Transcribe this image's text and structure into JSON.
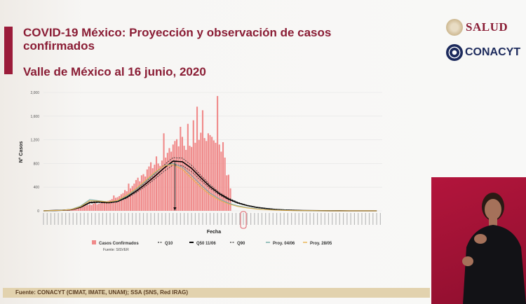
{
  "slide": {
    "title": "COVID-19 México: Proyección y observación de casos confirmados",
    "subtitle": "Valle de México al 16 junio, 2020",
    "footer": "Fuente: CONACYT (CIMAT, IMATE, UNAM);   SSA (SNS, Red IRAG)",
    "logos": {
      "salud": "SALUD",
      "conacyt": "CONACYT"
    },
    "colors": {
      "accent": "#8a1d35",
      "bars": "#f08a8a",
      "q50": "#000000",
      "proy_0406": "#6fa9a3",
      "proy_2805": "#e8b04a",
      "footer": "#e2d2ae"
    }
  },
  "chart_data": {
    "type": "bar",
    "xlabel": "Fecha",
    "ylabel": "N° Casos",
    "source": "Fuente: SISVER",
    "ylim": [
      0,
      2000
    ],
    "yticks": [
      "0",
      "400",
      "800",
      "1,200",
      "1,600",
      "2,000"
    ],
    "grid": true,
    "legend_placement": "bottom",
    "days_total": 183,
    "bars": {
      "name": "Casos Confirmados",
      "values": [
        0,
        0,
        0,
        0,
        0,
        2,
        3,
        5,
        8,
        10,
        12,
        15,
        20,
        25,
        30,
        35,
        40,
        45,
        40,
        50,
        60,
        70,
        80,
        90,
        100,
        110,
        100,
        120,
        130,
        110,
        120,
        130,
        150,
        140,
        160,
        170,
        180,
        200,
        260,
        220,
        230,
        250,
        280,
        300,
        350,
        330,
        460,
        380,
        420,
        460,
        520,
        560,
        500,
        600,
        620,
        580,
        700,
        750,
        820,
        720,
        780,
        920,
        800,
        760,
        850,
        1310,
        900,
        980,
        1060,
        1000,
        1120,
        1180,
        1210,
        1090,
        1420,
        1250,
        1100,
        1030,
        1470,
        1100,
        1080,
        1530,
        1150,
        1760,
        1200,
        1320,
        1700,
        1230,
        1180,
        1310,
        1280,
        1250,
        1190,
        1150,
        1940,
        1120,
        1000,
        1160,
        900,
        600,
        610,
        380
      ]
    },
    "curve_step_days": 5,
    "series": [
      {
        "name": "Q10",
        "style": "dashed",
        "values": [
          0,
          5,
          9,
          18,
          55,
          130,
          140,
          130,
          150,
          215,
          305,
          415,
          535,
          665,
          775,
          765,
          665,
          515,
          380,
          270,
          185,
          125,
          85,
          55,
          37,
          23,
          14,
          9,
          6,
          4,
          2,
          1,
          1,
          0,
          0,
          0,
          0
        ]
      },
      {
        "name": "Q50 11/06",
        "style": "solid",
        "values": [
          0,
          5,
          10,
          20,
          60,
          140,
          150,
          140,
          160,
          230,
          330,
          450,
          580,
          720,
          840,
          830,
          720,
          560,
          410,
          290,
          200,
          135,
          90,
          60,
          40,
          25,
          15,
          10,
          6,
          4,
          2,
          1,
          1,
          0,
          0,
          0,
          0
        ]
      },
      {
        "name": "Q90",
        "style": "dashed",
        "values": [
          0,
          5,
          11,
          22,
          65,
          150,
          160,
          150,
          172,
          245,
          355,
          480,
          620,
          770,
          900,
          890,
          770,
          600,
          440,
          310,
          215,
          145,
          97,
          64,
          43,
          27,
          16,
          11,
          7,
          4,
          2,
          1,
          1,
          0,
          0,
          0,
          0
        ]
      },
      {
        "name": "Proy. 04/06",
        "style": "solid",
        "values": [
          0,
          5,
          10,
          25,
          80,
          190,
          170,
          150,
          170,
          250,
          360,
          490,
          630,
          760,
          800,
          740,
          600,
          440,
          300,
          200,
          130,
          85,
          55,
          35,
          22,
          14,
          9,
          5,
          3,
          2,
          1,
          1,
          0,
          0,
          0,
          0,
          0
        ]
      },
      {
        "name": "Proy. 28/05",
        "style": "solid",
        "values": [
          0,
          5,
          10,
          22,
          70,
          170,
          165,
          150,
          175,
          265,
          380,
          510,
          650,
          760,
          780,
          700,
          550,
          400,
          270,
          180,
          115,
          75,
          48,
          30,
          19,
          12,
          7,
          4,
          3,
          2,
          1,
          0,
          0,
          0,
          0,
          0,
          0
        ]
      }
    ],
    "peak_marker_day": 71,
    "highlighted_day": 108
  }
}
